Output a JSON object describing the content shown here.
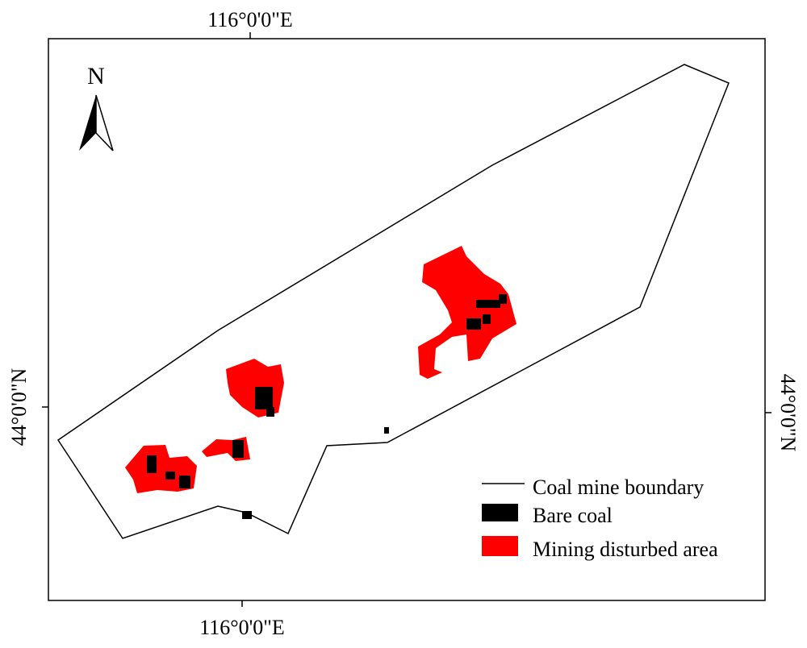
{
  "map": {
    "north_label": "N",
    "top_label": "116°0'0\"E",
    "bottom_label": "116°0'0\"E",
    "left_label": "44°0'0\"N",
    "right_label": "44°0'0\"N",
    "legend": [
      "Coal mine boundary",
      "Bare coal",
      "Mining disturbed area"
    ]
  }
}
